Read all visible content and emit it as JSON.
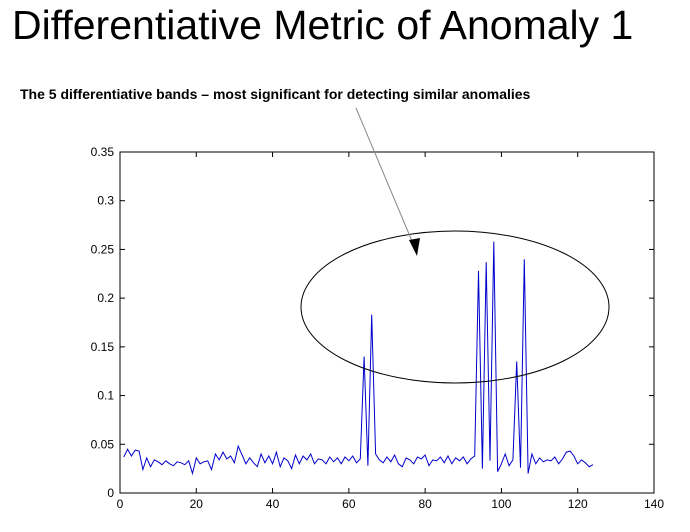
{
  "title": "Differentiative Metric of Anomaly 1",
  "annotation": "The 5 differentiative bands – most significant for detecting similar anomalies",
  "chart_data": {
    "type": "line",
    "title": "Differentiative Metric of Anomaly 1",
    "xlabel": "",
    "ylabel": "",
    "xlim": [
      0,
      140
    ],
    "ylim": [
      0,
      0.35
    ],
    "x_ticks": [
      "0",
      "20",
      "40",
      "60",
      "80",
      "100",
      "120",
      "140"
    ],
    "y_ticks": [
      "0",
      "0.05",
      "0.1",
      "0.15",
      "0.2",
      "0.25",
      "0.3",
      "0.35"
    ],
    "grid": false,
    "line_color": "#0000cc",
    "series": [
      {
        "x": [
          1,
          2,
          3,
          4,
          5,
          6,
          7,
          8,
          9,
          10,
          11,
          12,
          13,
          14,
          15,
          16,
          17,
          18,
          19,
          20,
          21,
          22,
          23,
          24,
          25,
          26,
          27,
          28,
          29,
          30,
          31,
          32,
          33,
          34,
          35,
          36,
          37,
          38,
          39,
          40,
          41,
          42,
          43,
          44,
          45,
          46,
          47,
          48,
          49,
          50,
          51,
          52,
          53,
          54,
          55,
          56,
          57,
          58,
          59,
          60,
          61,
          62,
          63,
          64,
          65,
          66,
          67,
          68,
          69,
          70,
          71,
          72,
          73,
          74,
          75,
          76,
          77,
          78,
          79,
          80,
          81,
          82,
          83,
          84,
          85,
          86,
          87,
          88,
          89,
          90,
          91,
          92,
          93,
          94,
          95,
          96,
          97,
          98,
          99,
          100,
          101,
          102,
          103,
          104,
          105,
          106,
          107,
          108,
          109,
          110,
          111,
          112,
          113,
          114,
          115,
          116,
          117,
          118,
          119,
          120,
          121,
          122,
          123,
          124
        ],
        "y": [
          0.037,
          0.045,
          0.038,
          0.044,
          0.043,
          0.024,
          0.036,
          0.027,
          0.034,
          0.032,
          0.029,
          0.033,
          0.03,
          0.028,
          0.032,
          0.031,
          0.029,
          0.033,
          0.02,
          0.036,
          0.03,
          0.032,
          0.033,
          0.024,
          0.04,
          0.034,
          0.042,
          0.035,
          0.038,
          0.031,
          0.048,
          0.039,
          0.03,
          0.036,
          0.031,
          0.027,
          0.04,
          0.031,
          0.038,
          0.03,
          0.042,
          0.027,
          0.036,
          0.033,
          0.025,
          0.039,
          0.03,
          0.038,
          0.034,
          0.04,
          0.03,
          0.035,
          0.034,
          0.03,
          0.037,
          0.032,
          0.036,
          0.03,
          0.037,
          0.033,
          0.038,
          0.031,
          0.035,
          0.14,
          0.028,
          0.183,
          0.04,
          0.034,
          0.031,
          0.037,
          0.032,
          0.039,
          0.03,
          0.027,
          0.036,
          0.034,
          0.03,
          0.037,
          0.035,
          0.039,
          0.028,
          0.034,
          0.033,
          0.037,
          0.031,
          0.038,
          0.03,
          0.036,
          0.033,
          0.037,
          0.03,
          0.035,
          0.038,
          0.228,
          0.025,
          0.237,
          0.033,
          0.258,
          0.022,
          0.03,
          0.04,
          0.028,
          0.034,
          0.135,
          0.026,
          0.24,
          0.02,
          0.04,
          0.03,
          0.036,
          0.032,
          0.034,
          0.033,
          0.037,
          0.03,
          0.035,
          0.042,
          0.043,
          0.038,
          0.03,
          0.034,
          0.031,
          0.027,
          0.029
        ]
      }
    ],
    "annotation_shape": "ellipse",
    "annotation_color": "#000000"
  }
}
